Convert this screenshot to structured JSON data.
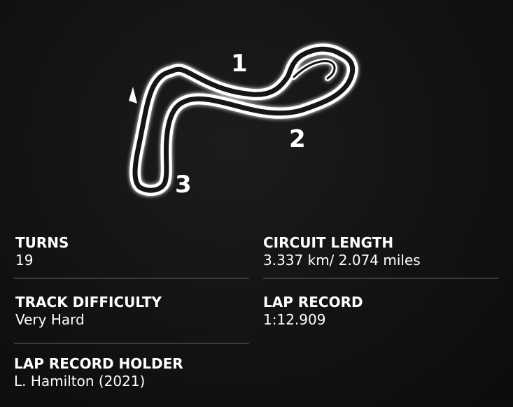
{
  "circuit": {
    "sector_labels": [
      "1",
      "2",
      "3"
    ]
  },
  "stats": {
    "turns": {
      "label": "TURNS",
      "value": "19"
    },
    "circuit_length": {
      "label": "CIRCUIT LENGTH",
      "value": "3.337 km/ 2.074 miles"
    },
    "track_difficulty": {
      "label": "TRACK DIFFICULTY",
      "value": "Very Hard"
    },
    "lap_record": {
      "label": "LAP RECORD",
      "value": "1:12.909"
    },
    "lap_record_holder": {
      "label": "LAP RECORD HOLDER",
      "value": "L. Hamilton (2021)"
    }
  },
  "colors": {
    "background": "#0f0f0f",
    "track_outline": "#ffffff",
    "divider": "#3a3a3a"
  }
}
